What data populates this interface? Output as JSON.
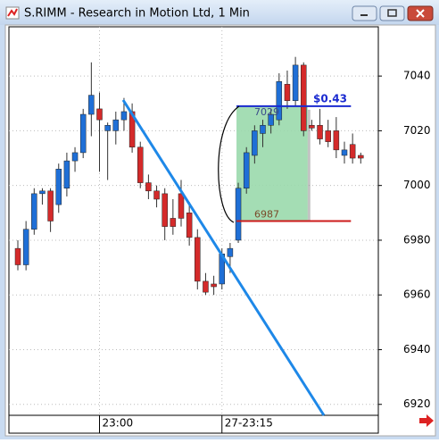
{
  "window_title": "S.RIMM - Research in Motion Ltd, 1 Min",
  "chart_data": {
    "type": "candlestick",
    "categories": [
      null,
      null,
      null,
      null,
      null,
      null,
      null,
      null,
      null,
      null,
      "23:00",
      null,
      null,
      null,
      null,
      null,
      null,
      null,
      null,
      null,
      null,
      null,
      null,
      null,
      null,
      "27-23:15",
      null,
      null,
      null,
      null,
      null,
      null,
      null,
      null,
      null,
      null,
      null,
      null,
      null,
      null,
      null,
      null,
      null
    ],
    "open": [
      6977,
      6971,
      6984,
      6997,
      6998,
      6993,
      6999,
      7009,
      7012,
      7026,
      7028,
      7020,
      7020,
      7024,
      7027,
      7014,
      7001,
      6998,
      6997,
      6988,
      6997,
      6990,
      6981,
      6965,
      6964,
      6964,
      6974,
      6980,
      6999,
      7011,
      7019,
      7022,
      7024,
      7037,
      7031,
      7044,
      7022,
      7022,
      7020,
      7020,
      7011,
      7015,
      7011
    ],
    "high": [
      6980,
      6987,
      6999,
      6999,
      6999,
      7008,
      7012,
      7014,
      7028,
      7045,
      7034,
      7023,
      7027,
      7032,
      7030,
      7016,
      7004,
      7000,
      6999,
      6995,
      7002,
      6994,
      6984,
      6968,
      6967,
      6977,
      6979,
      7001,
      7014,
      7022,
      7024,
      7028,
      7041,
      7042,
      7047,
      7045,
      7024,
      7028,
      7024,
      7025,
      7016,
      7019,
      7012
    ],
    "low": [
      6969,
      6969,
      6982,
      6993,
      6983,
      6990,
      6996,
      7005,
      7010,
      7018,
      7005,
      7002,
      7015,
      7020,
      7012,
      6999,
      6995,
      6992,
      6980,
      6982,
      6985,
      6978,
      6962,
      6960,
      6960,
      6962,
      6968,
      6979,
      6997,
      7008,
      7014,
      7019,
      7022,
      7028,
      7029,
      7018,
      7020,
      7015,
      7014,
      7010,
      7008,
      7008,
      7008
    ],
    "close": [
      6971,
      6984,
      6997,
      6998,
      6987,
      7006,
      7009,
      7012,
      7026,
      7033,
      7024,
      7022,
      7024,
      7027,
      7014,
      7001,
      6998,
      6995,
      6985,
      6985,
      6988,
      6981,
      6965,
      6961,
      6963,
      6975,
      6977,
      6999,
      7012,
      7020,
      7022,
      7026,
      7038,
      7031,
      7044,
      7020,
      7021,
      7017,
      7016,
      7013,
      7013,
      7010,
      7010
    ],
    "up_color": "#1f6fd6",
    "down_color": "#d42a2a",
    "ylim": [
      6916,
      7058
    ],
    "yticks": [
      6920,
      6940,
      6960,
      6980,
      7000,
      7020,
      7040
    ],
    "grid": true,
    "zone": {
      "top": 7029,
      "bottom": 6987,
      "gain": "$0.43"
    }
  }
}
